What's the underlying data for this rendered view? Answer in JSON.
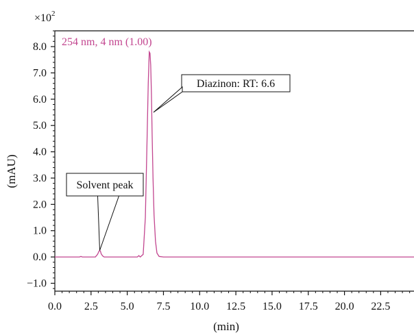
{
  "chart_data": {
    "type": "line",
    "title": "",
    "series_label": "254 nm, 4 nm (1.00)",
    "xlabel": "(min)",
    "ylabel": "(mAU)",
    "y_multiplier": "×10",
    "y_multiplier_exp": "2",
    "xlim": [
      0,
      24.8
    ],
    "ylim": [
      -1.3,
      8.6
    ],
    "x_ticks": [
      0.0,
      2.5,
      5.0,
      7.5,
      10.0,
      12.5,
      15.0,
      17.5,
      20.0,
      22.5
    ],
    "x_tick_labels": [
      "0.0",
      "2.5",
      "5.0",
      "7.5",
      "10.0",
      "12.5",
      "15.0",
      "17.5",
      "20.0",
      "22.5"
    ],
    "y_ticks": [
      -1.0,
      0.0,
      1.0,
      2.0,
      3.0,
      4.0,
      5.0,
      6.0,
      7.0,
      8.0
    ],
    "y_tick_labels": [
      "−1.0",
      "0.0",
      "1.0",
      "2.0",
      "3.0",
      "4.0",
      "5.0",
      "6.0",
      "7.0",
      "8.0"
    ],
    "series": [
      {
        "x": [
          0.0,
          1.7,
          1.8,
          1.9,
          2.8,
          2.95,
          3.05,
          3.1,
          3.15,
          3.2,
          3.3,
          3.4,
          3.6,
          5.7,
          5.8,
          5.9,
          6.1,
          6.25,
          6.35,
          6.45,
          6.52,
          6.57,
          6.62,
          6.67,
          6.72,
          6.78,
          6.85,
          6.95,
          7.05,
          7.2,
          7.5,
          24.8
        ],
        "y": [
          0.0,
          0.0,
          0.02,
          0.0,
          0.0,
          0.1,
          0.22,
          0.25,
          0.22,
          0.12,
          0.04,
          0.0,
          0.0,
          0.0,
          0.05,
          0.0,
          0.1,
          1.5,
          4.0,
          6.6,
          7.8,
          7.75,
          7.3,
          6.2,
          4.6,
          3.0,
          1.6,
          0.6,
          0.15,
          0.02,
          0.0,
          0.0
        ]
      }
    ],
    "annotations": [
      {
        "label": "Solvent peak",
        "x": 3.1,
        "y": 0.25
      },
      {
        "label": "Diazinon: RT: 6.6",
        "x": 6.62,
        "y": 5.5
      }
    ],
    "colors": {
      "series": "#c2458f",
      "axes": "#111111"
    },
    "grid": false,
    "legend": "none"
  }
}
